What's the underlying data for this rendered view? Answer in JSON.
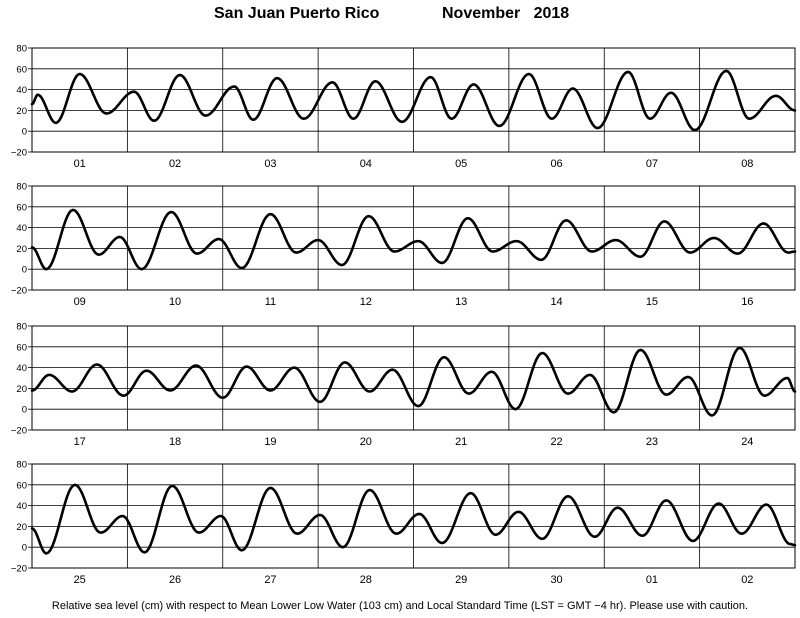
{
  "header": {
    "location": "San Juan Puerto Rico",
    "period": "November   2018"
  },
  "footnote": "Relative sea level (cm) with respect to Mean Lower Low Water (103 cm) and Local Standard Time (LST = GMT −4 hr). Please use with caution.",
  "chart_data": [
    {
      "type": "line",
      "ylim": [
        -20,
        80
      ],
      "yticks": [
        -20,
        0,
        20,
        40,
        60,
        80
      ],
      "ytick_labels": [
        "−20",
        "0",
        "20",
        "40",
        "60",
        "80"
      ],
      "day_labels": [
        "01",
        "02",
        "03",
        "04",
        "05",
        "06",
        "07",
        "08"
      ],
      "extrema": [
        [
          0,
          26
        ],
        [
          0.06,
          35
        ],
        [
          0.25,
          8
        ],
        [
          0.5,
          55
        ],
        [
          0.78,
          17
        ],
        [
          1.07,
          38
        ],
        [
          1.28,
          10
        ],
        [
          1.55,
          54
        ],
        [
          1.82,
          15
        ],
        [
          2.12,
          43
        ],
        [
          2.32,
          11
        ],
        [
          2.57,
          51
        ],
        [
          2.85,
          12
        ],
        [
          3.15,
          47
        ],
        [
          3.37,
          12
        ],
        [
          3.6,
          48
        ],
        [
          3.88,
          9
        ],
        [
          4.18,
          52
        ],
        [
          4.4,
          12
        ],
        [
          4.63,
          45
        ],
        [
          4.9,
          5
        ],
        [
          5.21,
          55
        ],
        [
          5.45,
          12
        ],
        [
          5.67,
          41
        ],
        [
          5.93,
          3
        ],
        [
          6.25,
          57
        ],
        [
          6.48,
          12
        ],
        [
          6.7,
          37
        ],
        [
          6.95,
          1
        ],
        [
          7.28,
          58
        ],
        [
          7.52,
          12
        ],
        [
          7.8,
          34
        ],
        [
          8.0,
          20
        ]
      ]
    },
    {
      "type": "line",
      "ylim": [
        -20,
        80
      ],
      "yticks": [
        -20,
        0,
        20,
        40,
        60,
        80
      ],
      "ytick_labels": [
        "−20",
        "0",
        "20",
        "40",
        "60",
        "80"
      ],
      "day_labels": [
        "09",
        "10",
        "11",
        "12",
        "13",
        "14",
        "15",
        "16"
      ],
      "extrema": [
        [
          0,
          21
        ],
        [
          0.15,
          0
        ],
        [
          0.43,
          57
        ],
        [
          0.7,
          14
        ],
        [
          0.92,
          31
        ],
        [
          1.15,
          0
        ],
        [
          1.46,
          55
        ],
        [
          1.73,
          15
        ],
        [
          1.96,
          29
        ],
        [
          2.2,
          1
        ],
        [
          2.5,
          53
        ],
        [
          2.77,
          16
        ],
        [
          3.0,
          28
        ],
        [
          3.25,
          4
        ],
        [
          3.53,
          51
        ],
        [
          3.8,
          17
        ],
        [
          4.05,
          27
        ],
        [
          4.3,
          6
        ],
        [
          4.57,
          49
        ],
        [
          4.83,
          17
        ],
        [
          5.08,
          27
        ],
        [
          5.34,
          9
        ],
        [
          5.6,
          47
        ],
        [
          5.87,
          17
        ],
        [
          6.12,
          28
        ],
        [
          6.38,
          12
        ],
        [
          6.63,
          46
        ],
        [
          6.9,
          16
        ],
        [
          7.15,
          30
        ],
        [
          7.4,
          15
        ],
        [
          7.67,
          44
        ],
        [
          7.93,
          16
        ],
        [
          8.0,
          17
        ]
      ]
    },
    {
      "type": "line",
      "ylim": [
        -20,
        80
      ],
      "yticks": [
        -20,
        0,
        20,
        40,
        60,
        80
      ],
      "ytick_labels": [
        "−20",
        "0",
        "20",
        "40",
        "60",
        "80"
      ],
      "day_labels": [
        "17",
        "18",
        "19",
        "20",
        "21",
        "22",
        "23",
        "24"
      ],
      "extrema": [
        [
          0,
          18
        ],
        [
          0.18,
          33
        ],
        [
          0.42,
          17
        ],
        [
          0.68,
          43
        ],
        [
          0.96,
          13
        ],
        [
          1.2,
          37
        ],
        [
          1.45,
          18
        ],
        [
          1.72,
          42
        ],
        [
          2.0,
          11
        ],
        [
          2.25,
          41
        ],
        [
          2.5,
          18
        ],
        [
          2.75,
          40
        ],
        [
          3.02,
          7
        ],
        [
          3.28,
          45
        ],
        [
          3.54,
          17
        ],
        [
          3.78,
          38
        ],
        [
          4.05,
          3
        ],
        [
          4.32,
          50
        ],
        [
          4.58,
          15
        ],
        [
          4.82,
          36
        ],
        [
          5.07,
          0
        ],
        [
          5.35,
          54
        ],
        [
          5.62,
          15
        ],
        [
          5.85,
          33
        ],
        [
          6.1,
          -3
        ],
        [
          6.38,
          57
        ],
        [
          6.65,
          14
        ],
        [
          6.88,
          31
        ],
        [
          7.13,
          -6
        ],
        [
          7.42,
          59
        ],
        [
          7.68,
          13
        ],
        [
          7.92,
          30
        ],
        [
          8.0,
          17
        ]
      ]
    },
    {
      "type": "line",
      "ylim": [
        -20,
        80
      ],
      "yticks": [
        -20,
        0,
        20,
        40,
        60,
        80
      ],
      "ytick_labels": [
        "−20",
        "0",
        "20",
        "40",
        "60",
        "80"
      ],
      "day_labels": [
        "25",
        "26",
        "27",
        "28",
        "29",
        "30",
        "01",
        "02"
      ],
      "extrema": [
        [
          0,
          18
        ],
        [
          0.15,
          -6
        ],
        [
          0.45,
          60
        ],
        [
          0.72,
          14
        ],
        [
          0.95,
          30
        ],
        [
          1.18,
          -5
        ],
        [
          1.47,
          59
        ],
        [
          1.75,
          14
        ],
        [
          1.98,
          30
        ],
        [
          2.2,
          -3
        ],
        [
          2.5,
          57
        ],
        [
          2.78,
          13
        ],
        [
          3.02,
          31
        ],
        [
          3.26,
          0
        ],
        [
          3.54,
          55
        ],
        [
          3.82,
          13
        ],
        [
          4.06,
          32
        ],
        [
          4.3,
          4
        ],
        [
          4.6,
          52
        ],
        [
          4.86,
          12
        ],
        [
          5.1,
          34
        ],
        [
          5.35,
          8
        ],
        [
          5.62,
          49
        ],
        [
          5.9,
          10
        ],
        [
          6.14,
          38
        ],
        [
          6.4,
          11
        ],
        [
          6.65,
          45
        ],
        [
          6.93,
          6
        ],
        [
          7.2,
          42
        ],
        [
          7.44,
          13
        ],
        [
          7.7,
          41
        ],
        [
          7.95,
          3
        ],
        [
          8.0,
          2
        ]
      ]
    }
  ]
}
